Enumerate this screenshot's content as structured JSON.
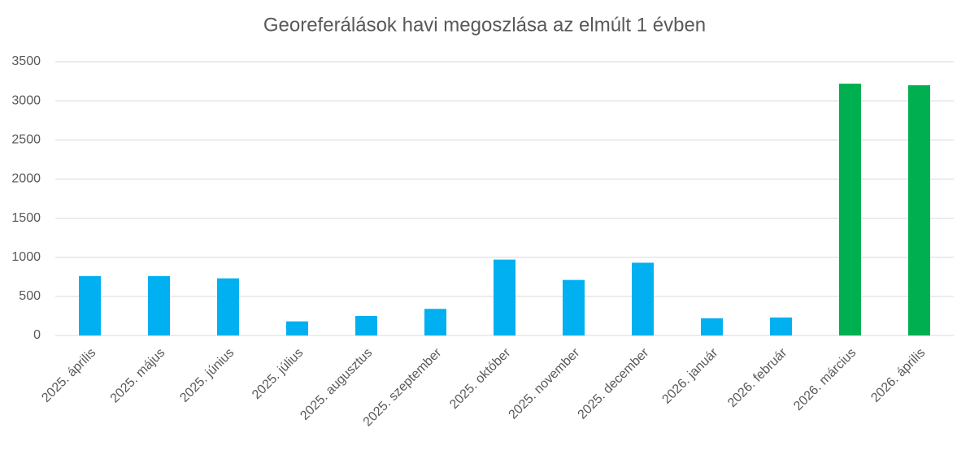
{
  "chart_data": {
    "type": "bar",
    "title": "Georeferálások havi megoszlása az elmúlt 1 évben",
    "categories": [
      "2025. április",
      "2025. május",
      "2025. június",
      "2025. július",
      "2025. augusztus",
      "2025. szeptember",
      "2025. október",
      "2025. november",
      "2025. december",
      "2026. január",
      "2026. február",
      "2026. március",
      "2026. április"
    ],
    "values": [
      760,
      760,
      730,
      180,
      250,
      340,
      970,
      710,
      930,
      220,
      230,
      3220,
      3200
    ],
    "colors": [
      "#00b0f0",
      "#00b0f0",
      "#00b0f0",
      "#00b0f0",
      "#00b0f0",
      "#00b0f0",
      "#00b0f0",
      "#00b0f0",
      "#00b0f0",
      "#00b0f0",
      "#00b0f0",
      "#00b050",
      "#00b050"
    ],
    "ylim": [
      0,
      3500
    ],
    "yticks": [
      0,
      500,
      1000,
      1500,
      2000,
      2500,
      3000,
      3500
    ],
    "grid": true
  }
}
